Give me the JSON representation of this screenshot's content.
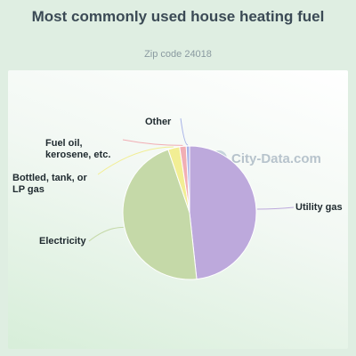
{
  "chart_data": {
    "type": "pie",
    "title": "Most commonly used house heating fuel",
    "subtitle": "Zip code 24018",
    "slices": [
      {
        "label": "Utility gas",
        "value": 48.3,
        "color": "#bda9dc"
      },
      {
        "label": "Electricity",
        "value": 46.5,
        "color": "#c5d9a8"
      },
      {
        "label": "Bottled, tank, or LP gas",
        "value": 2.8,
        "color": "#f2ee94"
      },
      {
        "label": "Fuel oil, kerosene, etc.",
        "value": 1.6,
        "color": "#f1aeb4"
      },
      {
        "label": "Other",
        "value": 0.8,
        "color": "#a8b3e8"
      }
    ]
  },
  "watermark": "City-Data.com"
}
